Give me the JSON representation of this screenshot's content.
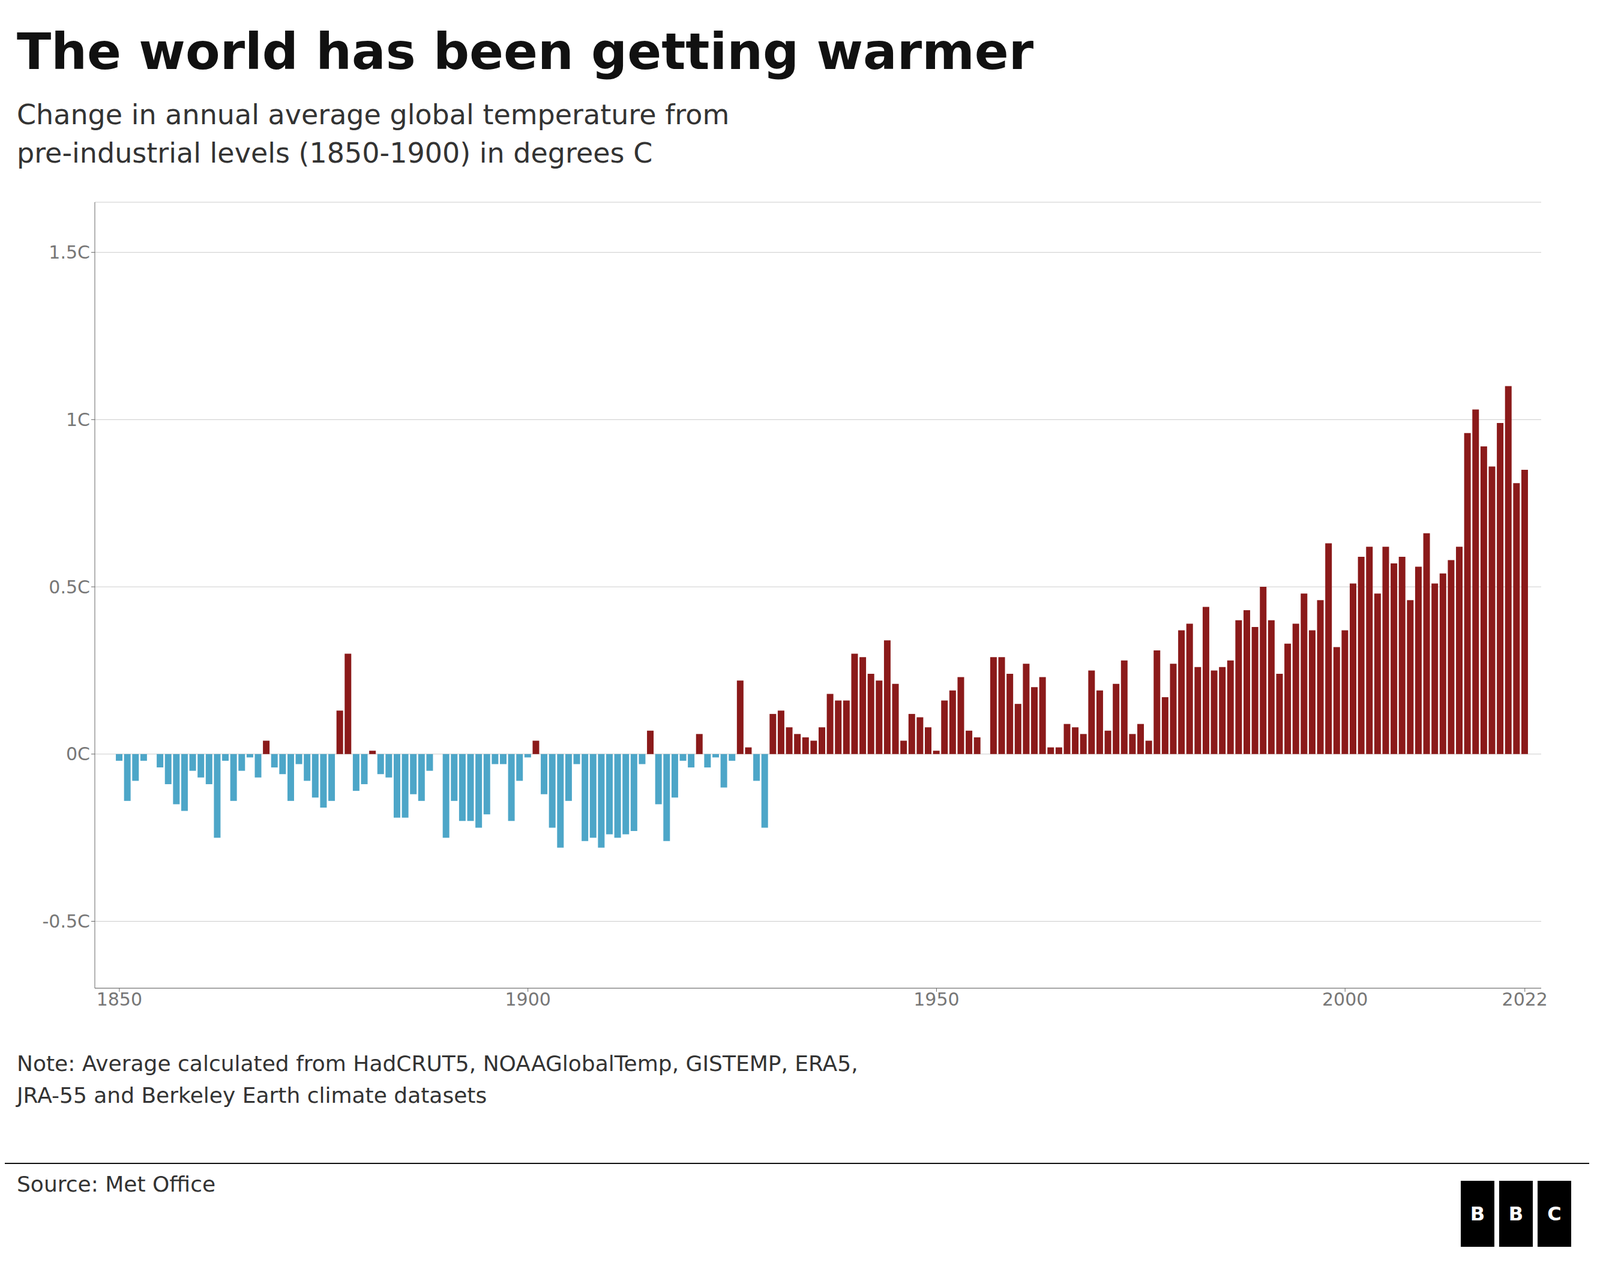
{
  "chart_data": {
    "type": "bar",
    "title": "The world has been getting warmer",
    "subtitle": "Change in annual average global temperature from\npre-industrial levels (1850-1900) in degrees C",
    "note": "Note: Average calculated from HadCRUT5, NOAAGlobalTemp, GISTEMP, ERA5,\nJRA-55 and Berkeley Earth climate datasets",
    "source": "Source: Met Office",
    "annotations": [
      "BBC"
    ],
    "x": [
      1850,
      1851,
      1852,
      1853,
      1854,
      1855,
      1856,
      1857,
      1858,
      1859,
      1860,
      1861,
      1862,
      1863,
      1864,
      1865,
      1866,
      1867,
      1868,
      1869,
      1870,
      1871,
      1872,
      1873,
      1874,
      1875,
      1876,
      1877,
      1878,
      1879,
      1880,
      1881,
      1882,
      1883,
      1884,
      1885,
      1886,
      1887,
      1888,
      1889,
      1890,
      1891,
      1892,
      1893,
      1894,
      1895,
      1896,
      1897,
      1898,
      1899,
      1900,
      1901,
      1902,
      1903,
      1904,
      1905,
      1906,
      1907,
      1908,
      1909,
      1910,
      1911,
      1912,
      1913,
      1914,
      1915,
      1916,
      1917,
      1918,
      1919,
      1920,
      1921,
      1922,
      1923,
      1924,
      1925,
      1926,
      1927,
      1928,
      1929,
      1930,
      1931,
      1932,
      1933,
      1934,
      1935,
      1936,
      1937,
      1938,
      1939,
      1940,
      1941,
      1942,
      1943,
      1944,
      1945,
      1946,
      1947,
      1948,
      1949,
      1950,
      1951,
      1952,
      1953,
      1954,
      1955,
      1956,
      1957,
      1958,
      1959,
      1960,
      1961,
      1962,
      1963,
      1964,
      1965,
      1966,
      1967,
      1968,
      1969,
      1970,
      1971,
      1972,
      1973,
      1974,
      1975,
      1976,
      1977,
      1978,
      1979,
      1980,
      1981,
      1982,
      1983,
      1984,
      1985,
      1986,
      1987,
      1988,
      1989,
      1990,
      1991,
      1992,
      1993,
      1994,
      1995,
      1996,
      1997,
      1998,
      1999,
      2000,
      2001,
      2002,
      2003,
      2004,
      2005,
      2006,
      2007,
      2008,
      2009,
      2010,
      2011,
      2012,
      2013,
      2014,
      2015,
      2016,
      2017,
      2018,
      2019,
      2020,
      2021,
      2022
    ],
    "values": [
      -0.02,
      -0.14,
      -0.08,
      -0.02,
      0.0,
      -0.04,
      -0.09,
      -0.15,
      -0.17,
      -0.05,
      -0.07,
      -0.09,
      -0.25,
      -0.02,
      -0.14,
      -0.05,
      -0.01,
      -0.07,
      0.04,
      -0.04,
      -0.06,
      -0.14,
      -0.03,
      -0.08,
      -0.13,
      -0.16,
      -0.14,
      0.13,
      0.3,
      -0.11,
      -0.09,
      0.01,
      -0.06,
      -0.07,
      -0.19,
      -0.19,
      -0.12,
      -0.14,
      -0.05,
      0.0,
      -0.25,
      -0.14,
      -0.2,
      -0.2,
      -0.22,
      -0.18,
      -0.03,
      -0.03,
      -0.2,
      -0.08,
      -0.01,
      0.04,
      -0.12,
      -0.22,
      -0.28,
      -0.14,
      -0.03,
      -0.26,
      -0.25,
      -0.28,
      -0.24,
      -0.25,
      -0.24,
      -0.23,
      -0.03,
      0.07,
      -0.15,
      -0.26,
      -0.13,
      -0.02,
      -0.04,
      0.06,
      -0.04,
      -0.01,
      -0.1,
      -0.02,
      0.22,
      0.02,
      -0.08,
      -0.22,
      0.12,
      0.13,
      0.08,
      0.06,
      0.05,
      0.04,
      0.08,
      0.18,
      0.16,
      0.16,
      0.3,
      0.29,
      0.24,
      0.22,
      0.34,
      0.21,
      0.04,
      0.12,
      0.11,
      0.08,
      0.01,
      0.16,
      0.19,
      0.23,
      0.07,
      0.05,
      0.0,
      0.29,
      0.29,
      0.24,
      0.15,
      0.27,
      0.2,
      0.23,
      0.02,
      0.02,
      0.09,
      0.08,
      0.06,
      0.25,
      0.19,
      0.07,
      0.21,
      0.28,
      0.06,
      0.09,
      0.04,
      0.31,
      0.17,
      0.27,
      0.37,
      0.39,
      0.26,
      0.44,
      0.25,
      0.26,
      0.28,
      0.4,
      0.43,
      0.38,
      0.5,
      0.4,
      0.24,
      0.33,
      0.39,
      0.48,
      0.37,
      0.46,
      0.63,
      0.32,
      0.37,
      0.51,
      0.59,
      0.62,
      0.48,
      0.62,
      0.57,
      0.59,
      0.46,
      0.56,
      0.66,
      0.51,
      0.54,
      0.58,
      0.62,
      0.96,
      1.03,
      0.92,
      0.86,
      0.99,
      1.1,
      0.81,
      0.85
    ],
    "colors": [
      "#4da6c8",
      "#4da6c8",
      "#4da6c8",
      "#4da6c8",
      "#8B1A1A",
      "#4da6c8",
      "#4da6c8",
      "#4da6c8",
      "#4da6c8",
      "#4da6c8",
      "#4da6c8",
      "#4da6c8",
      "#4da6c8",
      "#4da6c8",
      "#4da6c8",
      "#4da6c8",
      "#4da6c8",
      "#4da6c8",
      "#8B1A1A",
      "#4da6c8",
      "#4da6c8",
      "#4da6c8",
      "#4da6c8",
      "#4da6c8",
      "#4da6c8",
      "#4da6c8",
      "#4da6c8",
      "#8B1A1A",
      "#8B1A1A",
      "#4da6c8",
      "#4da6c8",
      "#8B1A1A",
      "#4da6c8",
      "#4da6c8",
      "#4da6c8",
      "#4da6c8",
      "#4da6c8",
      "#4da6c8",
      "#4da6c8",
      "#8B1A1A",
      "#4da6c8",
      "#4da6c8",
      "#4da6c8",
      "#4da6c8",
      "#4da6c8",
      "#4da6c8",
      "#4da6c8",
      "#4da6c8",
      "#4da6c8",
      "#4da6c8",
      "#4da6c8",
      "#8B1A1A",
      "#4da6c8",
      "#4da6c8",
      "#4da6c8",
      "#4da6c8",
      "#4da6c8",
      "#4da6c8",
      "#4da6c8",
      "#4da6c8",
      "#4da6c8",
      "#4da6c8",
      "#4da6c8",
      "#4da6c8",
      "#4da6c8",
      "#8B1A1A",
      "#4da6c8",
      "#4da6c8",
      "#4da6c8",
      "#4da6c8",
      "#4da6c8",
      "#8B1A1A",
      "#4da6c8",
      "#4da6c8",
      "#4da6c8",
      "#4da6c8",
      "#8B1A1A",
      "#8B1A1A",
      "#4da6c8",
      "#4da6c8",
      "#8B1A1A",
      "#8B1A1A",
      "#8B1A1A",
      "#8B1A1A",
      "#8B1A1A",
      "#8B1A1A",
      "#8B1A1A",
      "#8B1A1A",
      "#8B1A1A",
      "#8B1A1A",
      "#8B1A1A",
      "#8B1A1A",
      "#8B1A1A",
      "#8B1A1A",
      "#8B1A1A",
      "#8B1A1A",
      "#8B1A1A",
      "#8B1A1A",
      "#8B1A1A",
      "#8B1A1A",
      "#8B1A1A",
      "#8B1A1A",
      "#8B1A1A",
      "#8B1A1A",
      "#8B1A1A",
      "#8B1A1A",
      "#8B1A1A",
      "#8B1A1A",
      "#8B1A1A",
      "#8B1A1A",
      "#8B1A1A",
      "#8B1A1A",
      "#8B1A1A",
      "#8B1A1A",
      "#8B1A1A",
      "#8B1A1A",
      "#8B1A1A",
      "#8B1A1A",
      "#8B1A1A",
      "#8B1A1A",
      "#8B1A1A",
      "#8B1A1A",
      "#8B1A1A",
      "#8B1A1A",
      "#8B1A1A",
      "#8B1A1A",
      "#8B1A1A",
      "#8B1A1A",
      "#8B1A1A",
      "#8B1A1A",
      "#8B1A1A",
      "#8B1A1A",
      "#8B1A1A",
      "#8B1A1A",
      "#8B1A1A",
      "#8B1A1A",
      "#8B1A1A",
      "#8B1A1A",
      "#8B1A1A",
      "#8B1A1A",
      "#8B1A1A",
      "#8B1A1A",
      "#8B1A1A",
      "#8B1A1A",
      "#8B1A1A",
      "#8B1A1A",
      "#8B1A1A",
      "#8B1A1A",
      "#8B1A1A",
      "#8B1A1A",
      "#8B1A1A",
      "#8B1A1A",
      "#8B1A1A",
      "#8B1A1A",
      "#8B1A1A",
      "#8B1A1A",
      "#8B1A1A",
      "#8B1A1A",
      "#8B1A1A",
      "#8B1A1A",
      "#8B1A1A",
      "#8B1A1A",
      "#8B1A1A",
      "#8B1A1A",
      "#8B1A1A",
      "#8B1A1A",
      "#8B1A1A",
      "#8B1A1A",
      "#8B1A1A",
      "#8B1A1A",
      "#8B1A1A",
      "#8B1A1A",
      "#8B1A1A"
    ],
    "xlim": [
      1847,
      2024
    ],
    "xticks": [
      1850,
      1900,
      1950,
      2000,
      2022
    ],
    "ylim": [
      -0.7,
      1.65
    ],
    "yticks": [
      {
        "value": -0.5,
        "label": "-0.5C"
      },
      {
        "value": 0.0,
        "label": "0C"
      },
      {
        "value": 0.5,
        "label": "0.5C"
      },
      {
        "value": 1.0,
        "label": "1C"
      },
      {
        "value": 1.5,
        "label": "1.5C"
      }
    ],
    "grid": true
  }
}
